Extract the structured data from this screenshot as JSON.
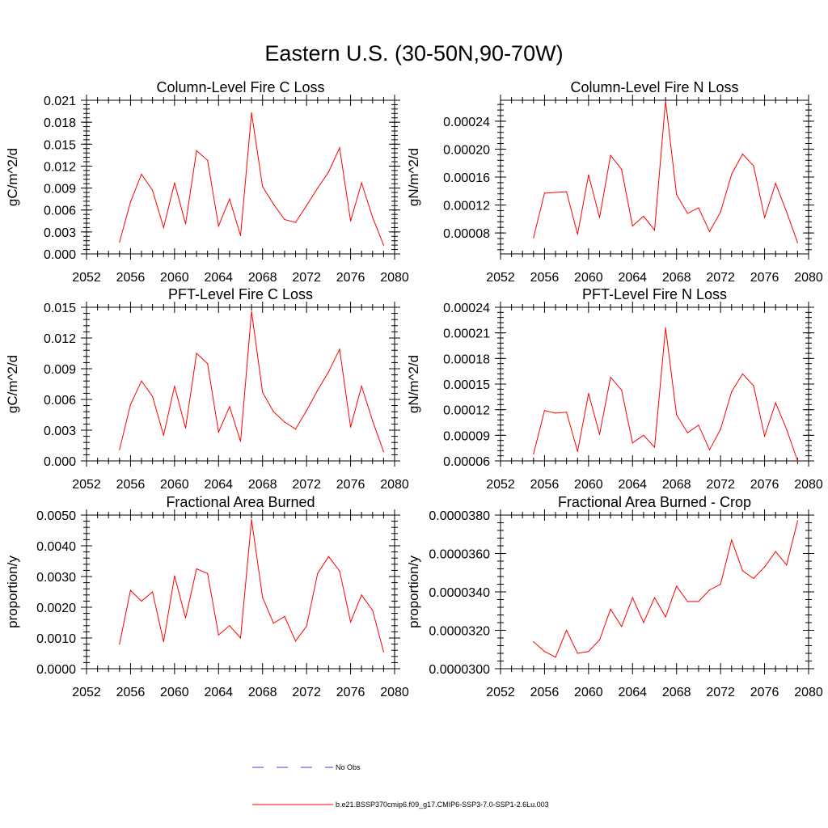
{
  "title": "Eastern U.S. (30-50N,90-70W)",
  "series_color": "#ff0000",
  "obs_color": "#3b45c8",
  "legend": {
    "obs_label": "No Obs",
    "model_label": "b.e21.BSSP370cmip6.f09_g17.CMIP6-SSP3-7.0-SSP1-2.6Lu.003"
  },
  "chart_data": [
    {
      "type": "line",
      "title": "Column-Level Fire C Loss",
      "ylabel": "gC/m^2/d",
      "xlim": [
        2052,
        2080
      ],
      "ylim": [
        0,
        0.021
      ],
      "xticks": [
        "2052",
        "2056",
        "2060",
        "2064",
        "2068",
        "2072",
        "2076",
        "2080"
      ],
      "yticks": [
        "0.000",
        "0.003",
        "0.006",
        "0.009",
        "0.012",
        "0.015",
        "0.018",
        "0.021"
      ],
      "x": [
        2055,
        2056,
        2057,
        2058,
        2059,
        2060,
        2061,
        2062,
        2063,
        2064,
        2065,
        2066,
        2067,
        2068,
        2069,
        2070,
        2071,
        2072,
        2073,
        2074,
        2075,
        2076,
        2077,
        2078,
        2079
      ],
      "series": [
        {
          "values": [
            0.0016,
            0.0071,
            0.0109,
            0.0087,
            0.0036,
            0.0097,
            0.0041,
            0.0141,
            0.0128,
            0.0038,
            0.0075,
            0.0025,
            0.0193,
            0.0092,
            0.0068,
            0.0047,
            0.0043,
            0.0066,
            0.009,
            0.0112,
            0.0145,
            0.0045,
            0.0097,
            0.005,
            0.0012
          ]
        }
      ]
    },
    {
      "type": "line",
      "title": "Column-Level Fire N Loss",
      "ylabel": "gN/m^2/d",
      "xlim": [
        2052,
        2080
      ],
      "ylim": [
        5e-05,
        0.00027
      ],
      "xticks": [
        "2052",
        "2056",
        "2060",
        "2064",
        "2068",
        "2072",
        "2076",
        "2080"
      ],
      "ytick_values": [
        8e-05,
        0.00012,
        0.00016,
        0.0002,
        0.00024
      ],
      "yticks": [
        "0.00008",
        "0.00012",
        "0.00016",
        "0.00020",
        "0.00024"
      ],
      "x": [
        2055,
        2056,
        2057,
        2058,
        2059,
        2060,
        2061,
        2062,
        2063,
        2064,
        2065,
        2066,
        2067,
        2068,
        2069,
        2070,
        2071,
        2072,
        2073,
        2074,
        2075,
        2076,
        2077,
        2078,
        2079
      ],
      "series": [
        {
          "values": [
            7.3e-05,
            0.000137,
            0.000138,
            0.000139,
            7.8e-05,
            0.000163,
            0.000102,
            0.000191,
            0.000171,
            9e-05,
            0.000104,
            8.4e-05,
            0.000269,
            0.000135,
            0.000108,
            0.000116,
            8.2e-05,
            0.00011,
            0.000164,
            0.000193,
            0.000176,
            0.000102,
            0.000151,
            0.00011,
            6.6e-05
          ]
        }
      ]
    },
    {
      "type": "line",
      "title": "PFT-Level Fire C Loss",
      "ylabel": "gC/m^2/d",
      "xlim": [
        2052,
        2080
      ],
      "ylim": [
        0,
        0.015
      ],
      "xticks": [
        "2052",
        "2056",
        "2060",
        "2064",
        "2068",
        "2072",
        "2076",
        "2080"
      ],
      "yticks": [
        "0.000",
        "0.003",
        "0.006",
        "0.009",
        "0.012",
        "0.015"
      ],
      "x": [
        2055,
        2056,
        2057,
        2058,
        2059,
        2060,
        2061,
        2062,
        2063,
        2064,
        2065,
        2066,
        2067,
        2068,
        2069,
        2070,
        2071,
        2072,
        2073,
        2074,
        2075,
        2076,
        2077,
        2078,
        2079
      ],
      "series": [
        {
          "values": [
            0.0011,
            0.0055,
            0.0078,
            0.0063,
            0.0025,
            0.0073,
            0.0032,
            0.0105,
            0.0095,
            0.0028,
            0.0053,
            0.0019,
            0.0146,
            0.0067,
            0.0048,
            0.0038,
            0.0031,
            0.0049,
            0.0069,
            0.0087,
            0.0109,
            0.0033,
            0.0073,
            0.0039,
            0.0009
          ]
        }
      ]
    },
    {
      "type": "line",
      "title": "PFT-Level Fire N Loss",
      "ylabel": "gN/m^2/d",
      "xlim": [
        2052,
        2080
      ],
      "ylim": [
        6e-05,
        0.00024
      ],
      "xticks": [
        "2052",
        "2056",
        "2060",
        "2064",
        "2068",
        "2072",
        "2076",
        "2080"
      ],
      "yticks": [
        "0.00006",
        "0.00009",
        "0.00012",
        "0.00015",
        "0.00018",
        "0.00021",
        "0.00024"
      ],
      "x": [
        2055,
        2056,
        2057,
        2058,
        2059,
        2060,
        2061,
        2062,
        2063,
        2064,
        2065,
        2066,
        2067,
        2068,
        2069,
        2070,
        2071,
        2072,
        2073,
        2074,
        2075,
        2076,
        2077,
        2078,
        2079
      ],
      "series": [
        {
          "values": [
            6.8e-05,
            0.000119,
            0.000116,
            0.000117,
            7.1e-05,
            0.000139,
            9.1e-05,
            0.000158,
            0.000143,
            8.1e-05,
            9e-05,
            7.6e-05,
            0.000216,
            0.000114,
            9.3e-05,
            0.000102,
            7.3e-05,
            9.7e-05,
            0.000141,
            0.000162,
            0.000148,
            8.9e-05,
            0.000128,
            9.7e-05,
            6e-05
          ]
        }
      ]
    },
    {
      "type": "line",
      "title": "Fractional Area Burned",
      "ylabel": "proportion/y",
      "xlim": [
        2052,
        2080
      ],
      "ylim": [
        0,
        0.005
      ],
      "xticks": [
        "2052",
        "2056",
        "2060",
        "2064",
        "2068",
        "2072",
        "2076",
        "2080"
      ],
      "yticks": [
        "0.0000",
        "0.0010",
        "0.0020",
        "0.0030",
        "0.0040",
        "0.0050"
      ],
      "x": [
        2055,
        2056,
        2057,
        2058,
        2059,
        2060,
        2061,
        2062,
        2063,
        2064,
        2065,
        2066,
        2067,
        2068,
        2069,
        2070,
        2071,
        2072,
        2073,
        2074,
        2075,
        2076,
        2077,
        2078,
        2079
      ],
      "series": [
        {
          "values": [
            0.0008,
            0.00255,
            0.0022,
            0.0025,
            0.00088,
            0.00302,
            0.00165,
            0.00325,
            0.0031,
            0.0011,
            0.0014,
            0.001,
            0.00485,
            0.00232,
            0.00148,
            0.0017,
            0.0009,
            0.00138,
            0.0031,
            0.00365,
            0.00318,
            0.00152,
            0.0024,
            0.0019,
            0.00055
          ]
        }
      ]
    },
    {
      "type": "line",
      "title": "Fractional Area Burned - Crop",
      "ylabel": "proportion/y",
      "xlim": [
        2052,
        2080
      ],
      "ylim": [
        3e-05,
        3.8e-05
      ],
      "xticks": [
        "2052",
        "2056",
        "2060",
        "2064",
        "2068",
        "2072",
        "2076",
        "2080"
      ],
      "yticks": [
        "0.0000300",
        "0.0000320",
        "0.0000340",
        "0.0000360",
        "0.0000380"
      ],
      "x": [
        2055,
        2056,
        2057,
        2058,
        2059,
        2060,
        2061,
        2062,
        2063,
        2064,
        2065,
        2066,
        2067,
        2068,
        2069,
        2070,
        2071,
        2072,
        2073,
        2074,
        2075,
        2076,
        2077,
        2078,
        2079
      ],
      "series": [
        {
          "values": [
            3.14e-05,
            3.09e-05,
            3.06e-05,
            3.2e-05,
            3.08e-05,
            3.09e-05,
            3.15e-05,
            3.31e-05,
            3.22e-05,
            3.37e-05,
            3.24e-05,
            3.37e-05,
            3.27e-05,
            3.43e-05,
            3.35e-05,
            3.35e-05,
            3.41e-05,
            3.44e-05,
            3.67e-05,
            3.51e-05,
            3.47e-05,
            3.53e-05,
            3.61e-05,
            3.54e-05,
            3.77e-05
          ]
        }
      ]
    }
  ]
}
